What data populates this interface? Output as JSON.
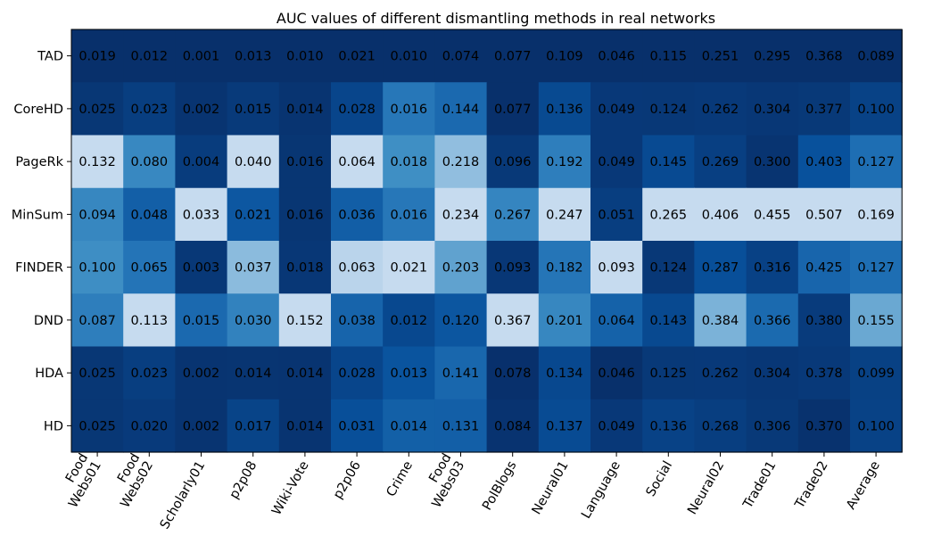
{
  "chart_data": {
    "type": "heatmap",
    "title": "AUC values of different dismantling methods in real networks",
    "rows": [
      "TAD",
      "CoreHD",
      "PageRk",
      "MinSum",
      "FINDER",
      "DND",
      "HDA",
      "HD"
    ],
    "columns": [
      [
        "Food",
        "Webs01"
      ],
      [
        "Food",
        "Webs02"
      ],
      [
        "Scholarly01"
      ],
      [
        "p2p08"
      ],
      [
        "Wiki-Vote"
      ],
      [
        "p2p06"
      ],
      [
        "Crime"
      ],
      [
        "Food",
        "Webs03"
      ],
      [
        "PolBlogs"
      ],
      [
        "Neural01"
      ],
      [
        "Language"
      ],
      [
        "Social"
      ],
      [
        "Neural02"
      ],
      [
        "Trade01"
      ],
      [
        "Trade02"
      ],
      [
        "Average"
      ]
    ],
    "values": [
      [
        0.019,
        0.012,
        0.001,
        0.013,
        0.01,
        0.021,
        0.01,
        0.074,
        0.077,
        0.109,
        0.046,
        0.115,
        0.251,
        0.295,
        0.368,
        0.089
      ],
      [
        0.025,
        0.023,
        0.002,
        0.015,
        0.014,
        0.028,
        0.016,
        0.144,
        0.077,
        0.136,
        0.049,
        0.124,
        0.262,
        0.304,
        0.377,
        0.1
      ],
      [
        0.132,
        0.08,
        0.004,
        0.04,
        0.016,
        0.064,
        0.018,
        0.218,
        0.096,
        0.192,
        0.049,
        0.145,
        0.269,
        0.3,
        0.403,
        0.127
      ],
      [
        0.094,
        0.048,
        0.033,
        0.021,
        0.016,
        0.036,
        0.016,
        0.234,
        0.267,
        0.247,
        0.051,
        0.265,
        0.406,
        0.455,
        0.507,
        0.169
      ],
      [
        0.1,
        0.065,
        0.003,
        0.037,
        0.018,
        0.063,
        0.021,
        0.203,
        0.093,
        0.182,
        0.093,
        0.124,
        0.287,
        0.316,
        0.425,
        0.127
      ],
      [
        0.087,
        0.113,
        0.015,
        0.03,
        0.152,
        0.038,
        0.012,
        0.12,
        0.367,
        0.201,
        0.064,
        0.143,
        0.384,
        0.366,
        0.38,
        0.155
      ],
      [
        0.025,
        0.023,
        0.002,
        0.014,
        0.014,
        0.028,
        0.013,
        0.141,
        0.078,
        0.134,
        0.046,
        0.125,
        0.262,
        0.304,
        0.378,
        0.099
      ],
      [
        0.025,
        0.02,
        0.002,
        0.017,
        0.014,
        0.031,
        0.014,
        0.131,
        0.084,
        0.137,
        0.049,
        0.136,
        0.268,
        0.306,
        0.37,
        0.1
      ]
    ],
    "colormap": "Blues_r (normalized per column)",
    "color_dark": "#08306b",
    "color_light": "#c6dbef"
  }
}
